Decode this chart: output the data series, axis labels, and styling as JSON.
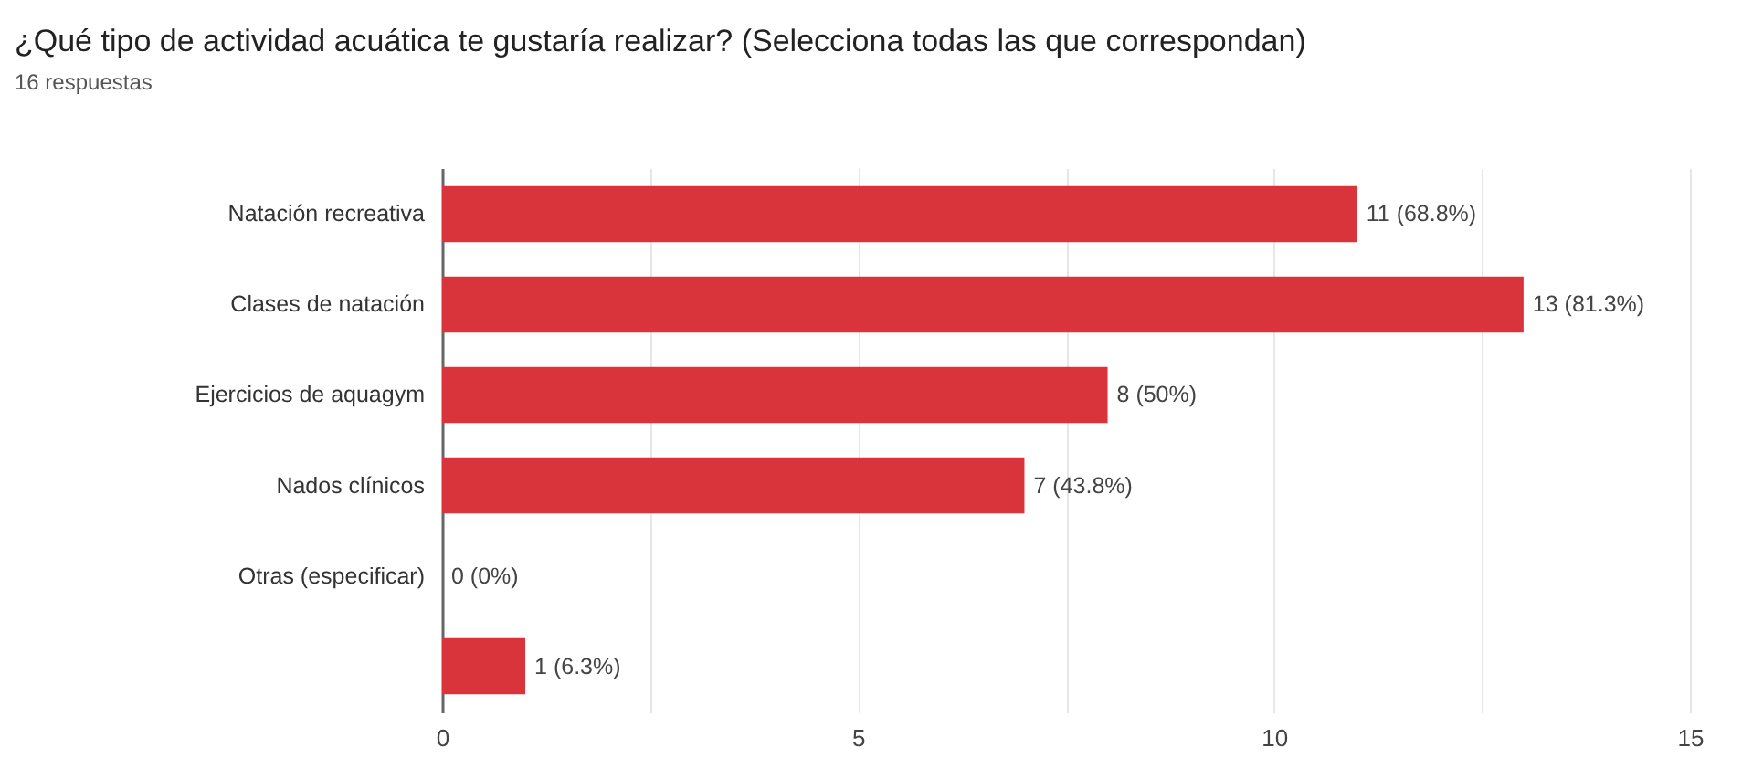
{
  "chart_data": {
    "type": "bar",
    "orientation": "horizontal",
    "title": "¿Qué tipo de actividad acuática te gustaría realizar? (Selecciona todas las que correspondan)",
    "subtitle": "16 respuestas",
    "categories": [
      "Natación recreativa",
      "Clases de natación",
      "Ejercicios de aquagym",
      "Nados clínicos",
      "Otras (especificar)",
      null
    ],
    "values": [
      11,
      13,
      8,
      7,
      0,
      1
    ],
    "value_labels": [
      "11 (68.8%)",
      "13 (81.3%)",
      "8 (50%)",
      "7 (43.8%)",
      "0 (0%)",
      "1 (6.3%)"
    ],
    "color": "#d9343b",
    "xlim": [
      0,
      15
    ],
    "xticks": [
      0,
      {
        "value": 2.5,
        "label": null
      },
      5,
      {
        "value": 7.5,
        "label": null
      },
      10,
      {
        "value": 12.5,
        "label": null
      },
      15
    ],
    "grid": true
  }
}
